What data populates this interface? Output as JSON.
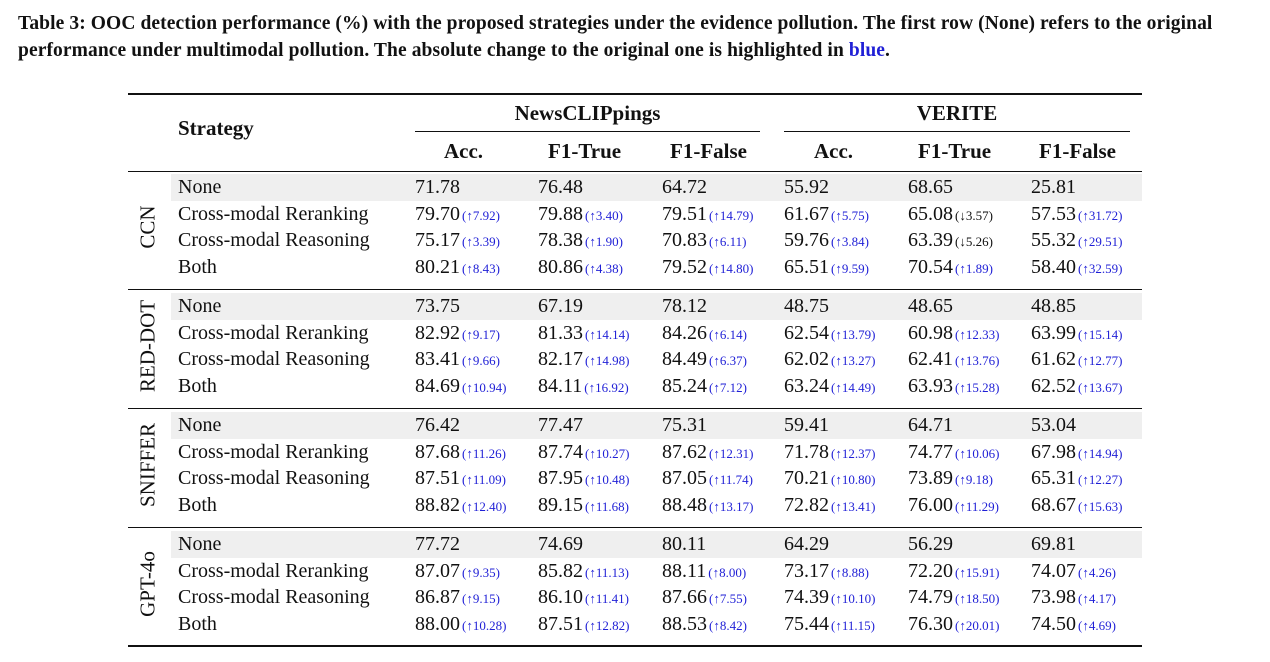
{
  "caption": {
    "main": "Table 3: OOC detection performance (%) with the proposed strategies under the evidence pollution. The first row (None) refers to the original performance under multimodal pollution. The absolute change to the original one is highlighted in ",
    "highlight_word": "blue",
    "end": ".",
    "highlight_color": "#1f1fd6"
  },
  "header": {
    "strategy": "Strategy",
    "group1": "NewsCLIPpings",
    "group2": "VERITE",
    "columns": [
      "Acc.",
      "F1-True",
      "F1-False",
      "Acc.",
      "F1-True",
      "F1-False"
    ]
  },
  "groups": [
    {
      "label": "CCN",
      "rows": [
        {
          "strategy": "None",
          "cells": [
            {
              "v": "71.78",
              "d": ""
            },
            {
              "v": "76.48",
              "d": ""
            },
            {
              "v": "64.72",
              "d": ""
            },
            {
              "v": "55.92",
              "d": ""
            },
            {
              "v": "68.65",
              "d": ""
            },
            {
              "v": "25.81",
              "d": ""
            }
          ]
        },
        {
          "strategy": "Cross-modal Reranking",
          "cells": [
            {
              "v": "79.70",
              "d": "(↑7.92)"
            },
            {
              "v": "79.88",
              "d": "(↑3.40)"
            },
            {
              "v": "79.51",
              "d": "(↑14.79)"
            },
            {
              "v": "61.67",
              "d": "(↑5.75)"
            },
            {
              "v": "65.08",
              "d": "(↓3.57)",
              "down": true
            },
            {
              "v": "57.53",
              "d": "(↑31.72)"
            }
          ]
        },
        {
          "strategy": "Cross-modal Reasoning",
          "cells": [
            {
              "v": "75.17",
              "d": "(↑3.39)"
            },
            {
              "v": "78.38",
              "d": "(↑1.90)"
            },
            {
              "v": "70.83",
              "d": "(↑6.11)"
            },
            {
              "v": "59.76",
              "d": "(↑3.84)"
            },
            {
              "v": "63.39",
              "d": "(↓5.26)",
              "down": true
            },
            {
              "v": "55.32",
              "d": "(↑29.51)"
            }
          ]
        },
        {
          "strategy": "Both",
          "cells": [
            {
              "v": "80.21",
              "d": "(↑8.43)"
            },
            {
              "v": "80.86",
              "d": "(↑4.38)"
            },
            {
              "v": "79.52",
              "d": "(↑14.80)"
            },
            {
              "v": "65.51",
              "d": "(↑9.59)"
            },
            {
              "v": "70.54",
              "d": "(↑1.89)"
            },
            {
              "v": "58.40",
              "d": "(↑32.59)"
            }
          ]
        }
      ]
    },
    {
      "label": "RED-DOT",
      "rows": [
        {
          "strategy": "None",
          "cells": [
            {
              "v": "73.75",
              "d": ""
            },
            {
              "v": "67.19",
              "d": ""
            },
            {
              "v": "78.12",
              "d": ""
            },
            {
              "v": "48.75",
              "d": ""
            },
            {
              "v": "48.65",
              "d": ""
            },
            {
              "v": "48.85",
              "d": ""
            }
          ]
        },
        {
          "strategy": "Cross-modal Reranking",
          "cells": [
            {
              "v": "82.92",
              "d": "(↑9.17)"
            },
            {
              "v": "81.33",
              "d": "(↑14.14)"
            },
            {
              "v": "84.26",
              "d": "(↑6.14)"
            },
            {
              "v": "62.54",
              "d": "(↑13.79)"
            },
            {
              "v": "60.98",
              "d": "(↑12.33)"
            },
            {
              "v": "63.99",
              "d": "(↑15.14)"
            }
          ]
        },
        {
          "strategy": "Cross-modal Reasoning",
          "cells": [
            {
              "v": "83.41",
              "d": "(↑9.66)"
            },
            {
              "v": "82.17",
              "d": "(↑14.98)"
            },
            {
              "v": "84.49",
              "d": "(↑6.37)"
            },
            {
              "v": "62.02",
              "d": "(↑13.27)"
            },
            {
              "v": "62.41",
              "d": "(↑13.76)"
            },
            {
              "v": "61.62",
              "d": "(↑12.77)"
            }
          ]
        },
        {
          "strategy": "Both",
          "cells": [
            {
              "v": "84.69",
              "d": "(↑10.94)"
            },
            {
              "v": "84.11",
              "d": "(↑16.92)"
            },
            {
              "v": "85.24",
              "d": "(↑7.12)"
            },
            {
              "v": "63.24",
              "d": "(↑14.49)"
            },
            {
              "v": "63.93",
              "d": "(↑15.28)"
            },
            {
              "v": "62.52",
              "d": "(↑13.67)"
            }
          ]
        }
      ]
    },
    {
      "label": "SNIFFER",
      "rows": [
        {
          "strategy": "None",
          "cells": [
            {
              "v": "76.42",
              "d": ""
            },
            {
              "v": "77.47",
              "d": ""
            },
            {
              "v": "75.31",
              "d": ""
            },
            {
              "v": "59.41",
              "d": ""
            },
            {
              "v": "64.71",
              "d": ""
            },
            {
              "v": "53.04",
              "d": ""
            }
          ]
        },
        {
          "strategy": "Cross-modal Reranking",
          "cells": [
            {
              "v": "87.68",
              "d": "(↑11.26)"
            },
            {
              "v": "87.74",
              "d": "(↑10.27)"
            },
            {
              "v": "87.62",
              "d": "(↑12.31)"
            },
            {
              "v": "71.78",
              "d": "(↑12.37)"
            },
            {
              "v": "74.77",
              "d": "(↑10.06)"
            },
            {
              "v": "67.98",
              "d": "(↑14.94)"
            }
          ]
        },
        {
          "strategy": "Cross-modal Reasoning",
          "cells": [
            {
              "v": "87.51",
              "d": "(↑11.09)"
            },
            {
              "v": "87.95",
              "d": "(↑10.48)"
            },
            {
              "v": "87.05",
              "d": "(↑11.74)"
            },
            {
              "v": "70.21",
              "d": "(↑10.80)"
            },
            {
              "v": "73.89",
              "d": "(↑9.18)"
            },
            {
              "v": "65.31",
              "d": "(↑12.27)"
            }
          ]
        },
        {
          "strategy": "Both",
          "cells": [
            {
              "v": "88.82",
              "d": "(↑12.40)"
            },
            {
              "v": "89.15",
              "d": "(↑11.68)"
            },
            {
              "v": "88.48",
              "d": "(↑13.17)"
            },
            {
              "v": "72.82",
              "d": "(↑13.41)"
            },
            {
              "v": "76.00",
              "d": "(↑11.29)"
            },
            {
              "v": "68.67",
              "d": "(↑15.63)"
            }
          ]
        }
      ]
    },
    {
      "label": "GPT-4o",
      "rows": [
        {
          "strategy": "None",
          "cells": [
            {
              "v": "77.72",
              "d": ""
            },
            {
              "v": "74.69",
              "d": ""
            },
            {
              "v": "80.11",
              "d": ""
            },
            {
              "v": "64.29",
              "d": ""
            },
            {
              "v": "56.29",
              "d": ""
            },
            {
              "v": "69.81",
              "d": ""
            }
          ]
        },
        {
          "strategy": "Cross-modal Reranking",
          "cells": [
            {
              "v": "87.07",
              "d": "(↑9.35)"
            },
            {
              "v": "85.82",
              "d": "(↑11.13)"
            },
            {
              "v": "88.11",
              "d": "(↑8.00)"
            },
            {
              "v": "73.17",
              "d": "(↑8.88)"
            },
            {
              "v": "72.20",
              "d": "(↑15.91)"
            },
            {
              "v": "74.07",
              "d": "(↑4.26)"
            }
          ]
        },
        {
          "strategy": "Cross-modal Reasoning",
          "cells": [
            {
              "v": "86.87",
              "d": "(↑9.15)"
            },
            {
              "v": "86.10",
              "d": "(↑11.41)"
            },
            {
              "v": "87.66",
              "d": "(↑7.55)"
            },
            {
              "v": "74.39",
              "d": "(↑10.10)"
            },
            {
              "v": "74.79",
              "d": "(↑18.50)"
            },
            {
              "v": "73.98",
              "d": "(↑4.17)"
            }
          ]
        },
        {
          "strategy": "Both",
          "cells": [
            {
              "v": "88.00",
              "d": "(↑10.28)"
            },
            {
              "v": "87.51",
              "d": "(↑12.82)"
            },
            {
              "v": "88.53",
              "d": "(↑8.42)"
            },
            {
              "v": "75.44",
              "d": "(↑11.15)"
            },
            {
              "v": "76.30",
              "d": "(↑20.01)"
            },
            {
              "v": "74.50",
              "d": "(↑4.69)"
            }
          ]
        }
      ]
    }
  ]
}
